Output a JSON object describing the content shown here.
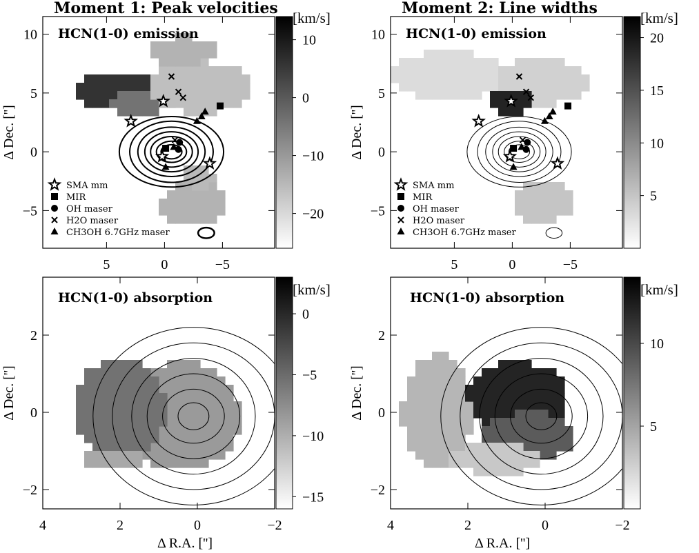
{
  "figure": {
    "col_titles": [
      "Moment 1: Peak velocities",
      "Moment 2: Line widths"
    ],
    "xlabel": "Δ R.A. ['']",
    "ylabel": "Δ Dec. ['']",
    "colorbar_unit": "[km/s]",
    "legend": {
      "entries": [
        "SMA mm",
        "MIR",
        "OH maser",
        "H2O maser",
        "CH3OH 6.7GHz maser"
      ],
      "icons": [
        "star-icon",
        "square-icon",
        "circle-icon",
        "cross-icon",
        "triangle-icon"
      ]
    }
  },
  "chart_data": [
    {
      "type": "heatmap",
      "title": "HCN(1-0) emission",
      "quantity": "Moment 1: Peak velocities",
      "xlabel": "",
      "ylabel": "Δ Dec. ['']",
      "xlim": [
        10.5,
        -9.5
      ],
      "ylim": [
        -8.2,
        11.5
      ],
      "xticks": [
        5,
        0,
        -5
      ],
      "yticks": [
        -5,
        0,
        5,
        10
      ],
      "colorbar": {
        "unit": "[km/s]",
        "min": -26,
        "max": 14,
        "ticks": [
          10,
          0,
          -10,
          -20
        ],
        "colormap": "gray_r"
      },
      "blobs": [
        {
          "cx": 3.5,
          "cy": 5.2,
          "rx": 4.2,
          "ry": 1.6,
          "value": 6
        },
        {
          "cx": 2.0,
          "cy": 4.2,
          "rx": 3.0,
          "ry": 1.0,
          "value": -4
        },
        {
          "cx": -3.0,
          "cy": 5.5,
          "rx": 4.5,
          "ry": 2.2,
          "value": -16
        },
        {
          "cx": -1.5,
          "cy": 8.6,
          "rx": 3.0,
          "ry": 1.2,
          "value": -14
        },
        {
          "cx": -2.5,
          "cy": -4.4,
          "rx": 2.8,
          "ry": 2.0,
          "value": -14
        },
        {
          "cx": -3.0,
          "cy": -2.2,
          "rx": 1.6,
          "ry": 0.9,
          "value": -15
        }
      ],
      "contours": {
        "center": [
          -0.6,
          0.0
        ],
        "count": 7,
        "widths": [
          0.9,
          1.3,
          1.8,
          2.3,
          2.9,
          3.6,
          4.5
        ],
        "heights": [
          0.6,
          0.9,
          1.3,
          1.7,
          2.1,
          2.6,
          3.0
        ]
      },
      "markers": {
        "sma_mm": [
          [
            0.1,
            4.3
          ],
          [
            0.2,
            -0.4
          ],
          [
            2.9,
            2.6
          ],
          [
            -3.9,
            -1.0
          ]
        ],
        "mir": [
          [
            -0.1,
            0.3
          ],
          [
            -4.8,
            3.9
          ]
        ],
        "oh_maser": [
          [
            -1.3,
            0.8
          ],
          [
            -1.2,
            0.2
          ]
        ],
        "h2o_maser": [
          [
            -0.6,
            6.4
          ],
          [
            -1.2,
            5.1
          ],
          [
            -1.6,
            4.6
          ],
          [
            -0.9,
            1.0
          ]
        ],
        "ch3oh_maser": [
          [
            -0.1,
            -1.3
          ],
          [
            -2.8,
            2.6
          ],
          [
            -3.2,
            3.0
          ],
          [
            -3.5,
            3.4
          ],
          [
            -0.8,
            0.4
          ]
        ]
      },
      "beam": {
        "x": -3.6,
        "y": -6.9,
        "rx": 0.7,
        "ry": 0.45
      }
    },
    {
      "type": "heatmap",
      "title": "HCN(1-0) emission",
      "quantity": "Moment 2: Line widths",
      "xlabel": "",
      "ylabel": "Δ Dec. ['']",
      "xlim": [
        10.5,
        -9.5
      ],
      "ylim": [
        -8.2,
        11.5
      ],
      "xticks": [
        5,
        0,
        -5
      ],
      "yticks": [
        -5,
        0,
        5,
        10
      ],
      "colorbar": {
        "unit": "[km/s]",
        "min": 0,
        "max": 22,
        "ticks": [
          20,
          15,
          10,
          5
        ],
        "colormap": "gray_r"
      },
      "blobs": [
        {
          "cx": 5.5,
          "cy": 6.5,
          "rx": 5.0,
          "ry": 2.0,
          "value": 3
        },
        {
          "cx": -2.5,
          "cy": 6.0,
          "rx": 4.0,
          "ry": 2.0,
          "value": 4
        },
        {
          "cx": 0.3,
          "cy": 4.3,
          "rx": 1.8,
          "ry": 1.2,
          "value": 19
        },
        {
          "cx": -2.5,
          "cy": -4.3,
          "rx": 2.6,
          "ry": 1.8,
          "value": 5
        }
      ],
      "contours": {
        "center": [
          -0.6,
          0.0
        ],
        "count": 7,
        "widths": [
          0.9,
          1.3,
          1.8,
          2.3,
          2.9,
          3.6,
          4.5
        ],
        "heights": [
          0.6,
          0.9,
          1.3,
          1.7,
          2.1,
          2.6,
          3.0
        ]
      },
      "markers": {
        "sma_mm": [
          [
            0.1,
            4.3
          ],
          [
            0.2,
            -0.4
          ],
          [
            2.9,
            2.6
          ],
          [
            -3.9,
            -1.0
          ]
        ],
        "mir": [
          [
            -0.1,
            0.3
          ],
          [
            -4.8,
            3.9
          ]
        ],
        "oh_maser": [
          [
            -1.3,
            0.8
          ],
          [
            -1.2,
            0.2
          ]
        ],
        "h2o_maser": [
          [
            -0.6,
            6.4
          ],
          [
            -1.2,
            5.1
          ],
          [
            -1.6,
            4.6
          ],
          [
            -0.9,
            1.0
          ]
        ],
        "ch3oh_maser": [
          [
            -0.1,
            -1.3
          ],
          [
            -2.8,
            2.6
          ],
          [
            -3.2,
            3.0
          ],
          [
            -3.5,
            3.4
          ],
          [
            -0.8,
            0.4
          ]
        ]
      },
      "beam": {
        "x": -3.6,
        "y": -6.9,
        "rx": 0.7,
        "ry": 0.45
      }
    },
    {
      "type": "heatmap",
      "title": "HCN(1-0) absorption",
      "quantity": "Moment 1: Peak velocities",
      "xlabel": "Δ R.A. ['']",
      "ylabel": "Δ Dec. ['']",
      "xlim": [
        4,
        -2
      ],
      "ylim": [
        -2.5,
        3.5
      ],
      "xticks": [
        4,
        2,
        0,
        -2
      ],
      "yticks": [
        -2,
        0,
        2
      ],
      "colorbar": {
        "unit": "[km/s]",
        "min": -16,
        "max": 3,
        "ticks": [
          0,
          -5,
          -10,
          -15
        ],
        "colormap": "gray_r"
      },
      "blobs": [
        {
          "cx": 0.4,
          "cy": -0.1,
          "rx": 1.5,
          "ry": 1.4,
          "value": -8.5
        },
        {
          "cx": 2.0,
          "cy": 0.1,
          "rx": 1.2,
          "ry": 1.3,
          "value": -5.5
        },
        {
          "cx": 2.2,
          "cy": -1.2,
          "rx": 0.8,
          "ry": 0.3,
          "value": -9.5
        }
      ],
      "contours": {
        "center": [
          0.1,
          -0.1
        ],
        "count": 6,
        "widths": [
          0.4,
          0.8,
          1.2,
          1.6,
          2.1,
          2.6
        ],
        "heights": [
          0.35,
          0.7,
          1.1,
          1.5,
          1.9,
          2.3
        ]
      },
      "markers": {}
    },
    {
      "type": "heatmap",
      "title": "HCN(1-0) absorption",
      "quantity": "Moment 2: Line widths",
      "xlabel": "Δ R.A. ['']",
      "ylabel": "Δ Dec. ['']",
      "xlim": [
        4,
        -2
      ],
      "ylim": [
        -2.5,
        3.5
      ],
      "xticks": [
        4,
        2,
        0,
        -2
      ],
      "yticks": [
        -2,
        0,
        2
      ],
      "colorbar": {
        "unit": "[km/s]",
        "min": 0,
        "max": 14,
        "ticks": [
          10,
          5
        ],
        "colormap": "gray_r"
      },
      "blobs": [
        {
          "cx": 2.8,
          "cy": 0.0,
          "rx": 0.9,
          "ry": 1.5,
          "value": 4
        },
        {
          "cx": 0.7,
          "cy": 0.4,
          "rx": 1.3,
          "ry": 0.9,
          "value": 12
        },
        {
          "cx": 0.4,
          "cy": -0.6,
          "rx": 1.2,
          "ry": 0.6,
          "value": 9
        },
        {
          "cx": 1.3,
          "cy": -1.2,
          "rx": 1.2,
          "ry": 0.4,
          "value": 3
        }
      ],
      "contours": {
        "center": [
          0.1,
          -0.1
        ],
        "count": 6,
        "widths": [
          0.4,
          0.8,
          1.2,
          1.6,
          2.1,
          2.6
        ],
        "heights": [
          0.35,
          0.7,
          1.1,
          1.5,
          1.9,
          2.3
        ]
      },
      "markers": {}
    }
  ]
}
